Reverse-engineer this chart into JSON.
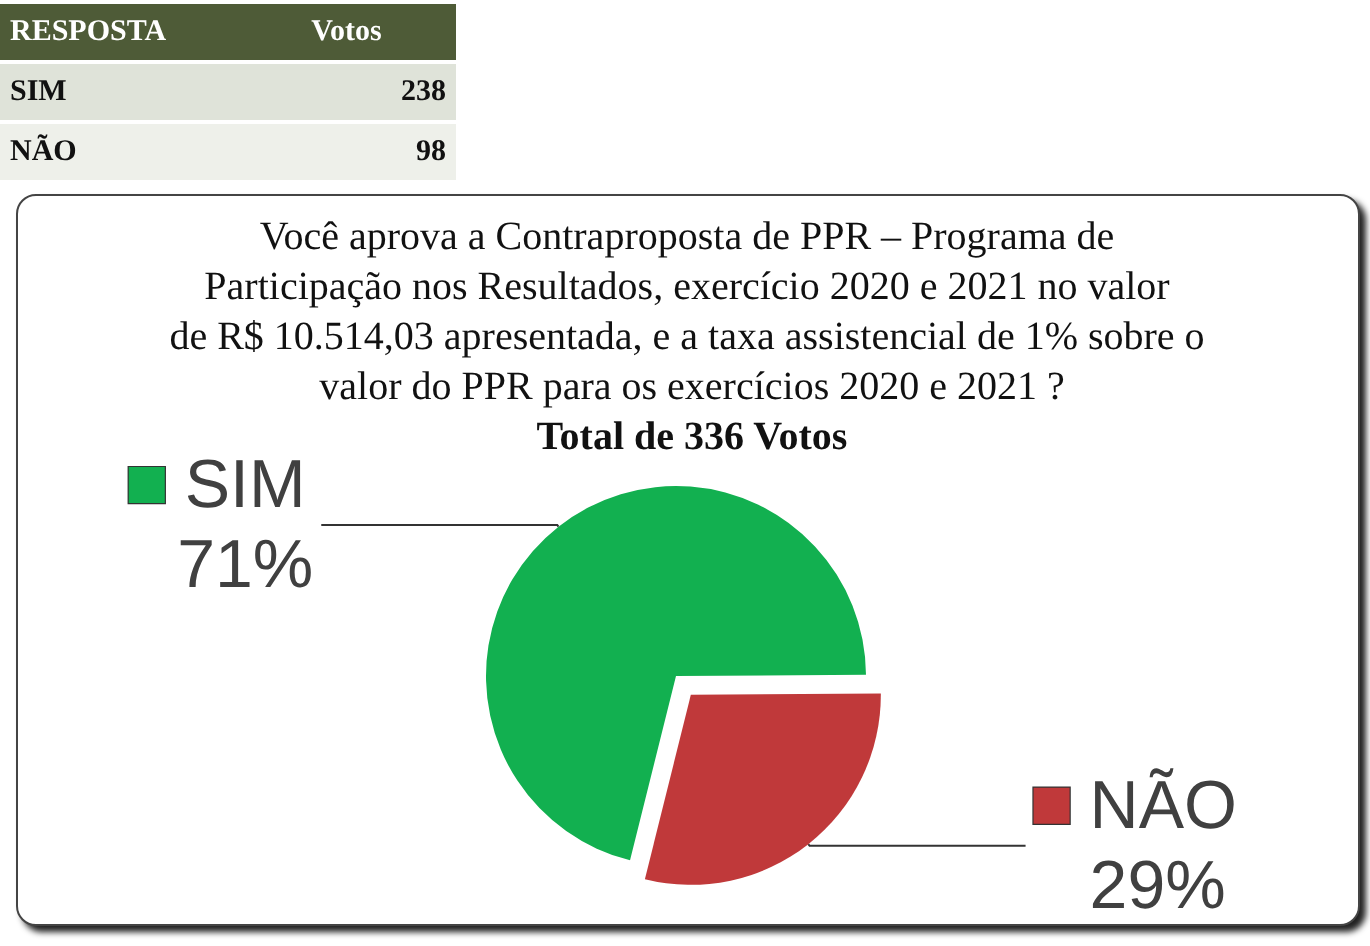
{
  "chart_data": [
    {
      "type": "other",
      "annotations": [
        "RESPOSTA",
        "Votos"
      ],
      "categories": [
        "SIM",
        "NÃO"
      ],
      "values": [
        238,
        98
      ],
      "data_labels": true
    },
    {
      "type": "pie",
      "title": "Você aprova a Contraproposta de PPR – Programa de Participação nos Resultados, exercício 2020 e 2021 no valor de R$ 10.514,03 apresentada, e a taxa assistencial de 1% sobre o valor do PPR para os exercícios 2020 e 2021 ?",
      "subtitle": "Total de 336 Votos",
      "categories": [
        "SIM",
        "NÃO"
      ],
      "values": [
        71,
        29
      ],
      "colors": [
        "#12b050",
        "#c0393a"
      ],
      "value_labels": [
        "71%",
        "29%"
      ],
      "legend": "left"
    }
  ]
}
